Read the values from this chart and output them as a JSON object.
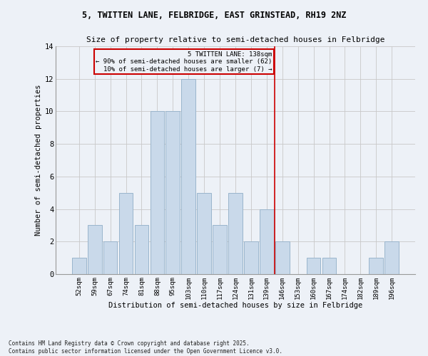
{
  "title_line1": "5, TWITTEN LANE, FELBRIDGE, EAST GRINSTEAD, RH19 2NZ",
  "title_line2": "Size of property relative to semi-detached houses in Felbridge",
  "xlabel": "Distribution of semi-detached houses by size in Felbridge",
  "ylabel": "Number of semi-detached properties",
  "categories": [
    "52sqm",
    "59sqm",
    "67sqm",
    "74sqm",
    "81sqm",
    "88sqm",
    "95sqm",
    "103sqm",
    "110sqm",
    "117sqm",
    "124sqm",
    "131sqm",
    "139sqm",
    "146sqm",
    "153sqm",
    "160sqm",
    "167sqm",
    "174sqm",
    "182sqm",
    "189sqm",
    "196sqm"
  ],
  "values": [
    1,
    3,
    2,
    5,
    3,
    10,
    10,
    12,
    5,
    3,
    5,
    2,
    4,
    2,
    0,
    1,
    1,
    0,
    0,
    1,
    2
  ],
  "bar_color": "#c9d9ea",
  "bar_edge_color": "#9ab5cc",
  "annotation_line1": "5 TWITTEN LANE: 138sqm",
  "annotation_line2": "← 90% of semi-detached houses are smaller (62)",
  "annotation_line3": "10% of semi-detached houses are larger (7) →",
  "vline_color": "#cc0000",
  "annotation_box_edge": "#cc0000",
  "ylim": [
    0,
    14
  ],
  "yticks": [
    0,
    2,
    4,
    6,
    8,
    10,
    12,
    14
  ],
  "grid_color": "#c8c8c8",
  "background_color": "#edf1f7",
  "footer_line1": "Contains HM Land Registry data © Crown copyright and database right 2025.",
  "footer_line2": "Contains public sector information licensed under the Open Government Licence v3.0."
}
